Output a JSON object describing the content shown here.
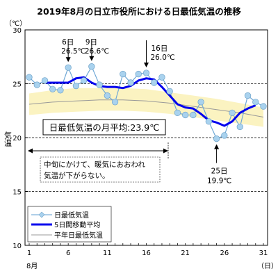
{
  "chart_data": {
    "type": "line",
    "title": "2019年8月の日立市役所における日最低気温の推移",
    "y_unit": "（℃）",
    "ylabel": "気温",
    "xlabel": "8月",
    "x_unit": "（日）",
    "ylim": [
      10,
      30
    ],
    "y_ticks": [
      10,
      15,
      20,
      25,
      30
    ],
    "xlim": [
      1,
      31
    ],
    "x_ticks": [
      1,
      6,
      11,
      16,
      21,
      26,
      31
    ],
    "grid_lines": [
      15,
      20,
      25
    ],
    "x": [
      1,
      2,
      3,
      4,
      5,
      6,
      7,
      8,
      9,
      10,
      11,
      12,
      13,
      14,
      15,
      16,
      17,
      18,
      19,
      20,
      21,
      22,
      23,
      24,
      25,
      26,
      27,
      28,
      29,
      30,
      31
    ],
    "series": [
      {
        "name": "日最低気温",
        "color": "#7fb2d9",
        "values": [
          25.6,
          24.9,
          25.3,
          24.5,
          24.4,
          26.5,
          24.8,
          25.3,
          26.6,
          24.9,
          23.9,
          23.3,
          25.9,
          25.1,
          25.9,
          26.0,
          25.1,
          25.6,
          24.3,
          22.3,
          22.1,
          22.1,
          23.3,
          21.5,
          19.9,
          20.2,
          22.3,
          21.0,
          23.9,
          23.3,
          22.9
        ]
      },
      {
        "name": "5日間移動平均",
        "color": "#0000ee",
        "x": [
          3,
          4,
          5,
          6,
          7,
          8,
          9,
          10,
          11,
          12,
          13,
          14,
          15,
          16,
          17,
          18,
          19,
          20,
          21,
          22,
          23,
          24,
          25,
          26,
          27,
          28,
          29,
          30
        ],
        "values": [
          25.1,
          25.1,
          25.1,
          25.1,
          25.5,
          25.6,
          25.1,
          24.8,
          24.7,
          24.7,
          24.6,
          24.8,
          25.3,
          25.5,
          25.4,
          24.7,
          23.9,
          23.1,
          22.8,
          22.7,
          22.2,
          21.6,
          21.4,
          21.1,
          21.5,
          22.3,
          22.7,
          23.0
        ]
      },
      {
        "name": "平年日最低気温",
        "color": "#999999",
        "x": [
          1,
          4,
          7,
          10,
          13,
          16,
          19,
          22,
          25,
          28,
          31
        ],
        "values": [
          23.1,
          23.3,
          23.4,
          23.5,
          23.5,
          23.4,
          23.2,
          22.9,
          22.6,
          22.3,
          21.9
        ]
      }
    ],
    "normal_band": {
      "upper": [
        24.1,
        24.4,
        24.6,
        24.6,
        24.6,
        24.5,
        24.2,
        23.9,
        23.6,
        23.2,
        22.8
      ],
      "lower": [
        22.1,
        22.3,
        22.4,
        22.5,
        22.5,
        22.4,
        22.2,
        21.9,
        21.6,
        21.3,
        21.0
      ],
      "fill": "#fbf3c1"
    },
    "annotations": [
      {
        "day": 6,
        "label": "6日",
        "value_label": "26.5℃"
      },
      {
        "day": 9,
        "label": "9日",
        "value_label": "26.6℃"
      },
      {
        "day": 16,
        "label": "16日",
        "value_label": "26.0℃"
      },
      {
        "day": 25,
        "label": "25日",
        "value_label": "19.9℃"
      }
    ],
    "mean_label": "日最低気温の月平均:23.9℃",
    "note_lines": [
      "中旬にかけて、暖気におおわれ",
      "気温が下がらない。"
    ],
    "legend_position": "bottom-left"
  }
}
